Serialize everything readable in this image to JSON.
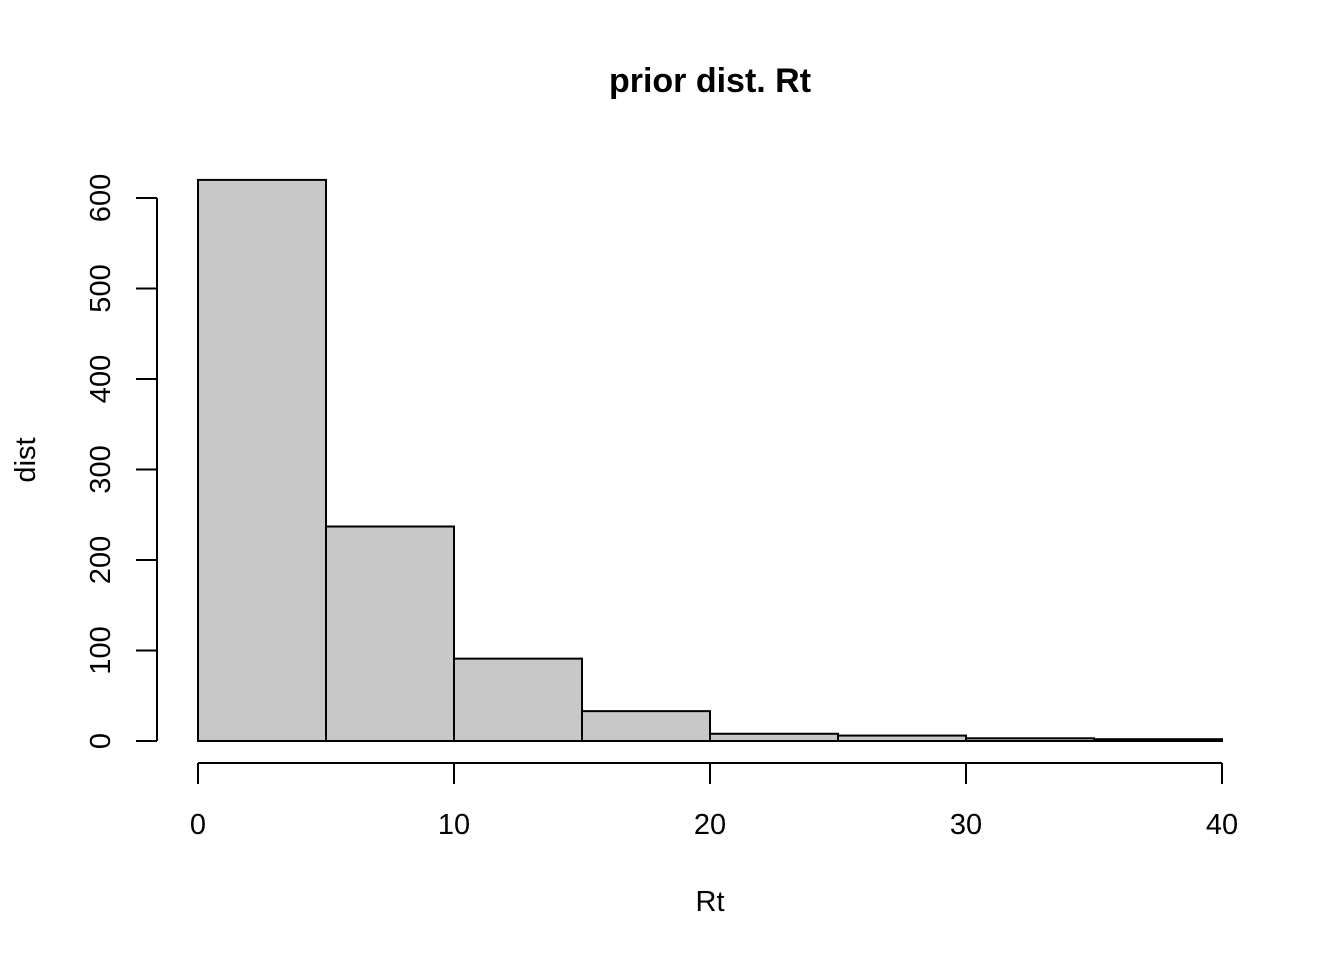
{
  "chart_data": {
    "type": "bar",
    "title": "prior dist. Rt",
    "xlabel": "Rt",
    "ylabel": "dist",
    "bins": [
      {
        "x0": 0,
        "x1": 5,
        "count": 620
      },
      {
        "x0": 5,
        "x1": 10,
        "count": 237
      },
      {
        "x0": 10,
        "x1": 15,
        "count": 91
      },
      {
        "x0": 15,
        "x1": 20,
        "count": 33
      },
      {
        "x0": 20,
        "x1": 25,
        "count": 8
      },
      {
        "x0": 25,
        "x1": 30,
        "count": 6
      },
      {
        "x0": 30,
        "x1": 35,
        "count": 3
      },
      {
        "x0": 35,
        "x1": 40,
        "count": 2
      }
    ],
    "xlim": [
      0,
      40
    ],
    "ylim": [
      0,
      620
    ],
    "x_ticks": [
      0,
      10,
      20,
      30,
      40
    ],
    "y_ticks": [
      0,
      100,
      200,
      300,
      400,
      500,
      600
    ],
    "bar_color": "#c8c8c8",
    "grid": false
  }
}
